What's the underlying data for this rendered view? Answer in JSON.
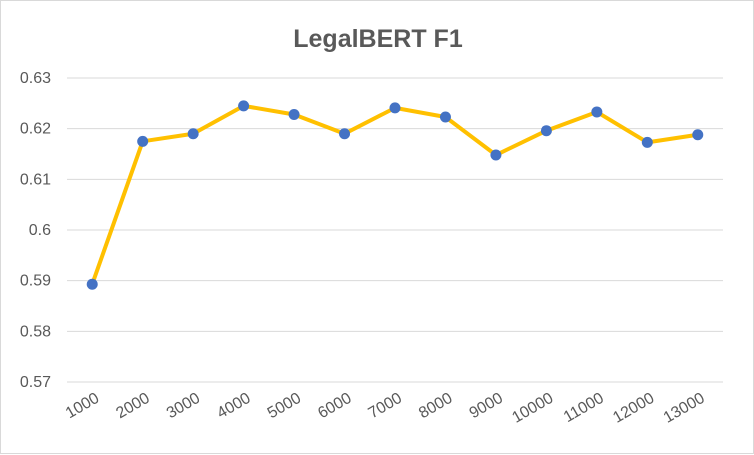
{
  "chart_data": {
    "type": "line",
    "title": "LegalBERT F1",
    "xlabel": "",
    "ylabel": "",
    "categories": [
      "1000",
      "2000",
      "3000",
      "4000",
      "5000",
      "6000",
      "7000",
      "8000",
      "9000",
      "10000",
      "11000",
      "12000",
      "13000"
    ],
    "series": [
      {
        "values": [
          0.5893,
          0.6175,
          0.619,
          0.6245,
          0.6228,
          0.619,
          0.6241,
          0.6223,
          0.6148,
          0.6196,
          0.6233,
          0.6173,
          0.6188
        ]
      }
    ],
    "ylim": [
      0.57,
      0.63
    ],
    "yticks": [
      "0.57",
      "0.58",
      "0.59",
      "0.6",
      "0.61",
      "0.62",
      "0.63"
    ],
    "grid": true,
    "legend": "none",
    "colors": {
      "line": "#FFC000",
      "marker": "#4472C4"
    }
  }
}
